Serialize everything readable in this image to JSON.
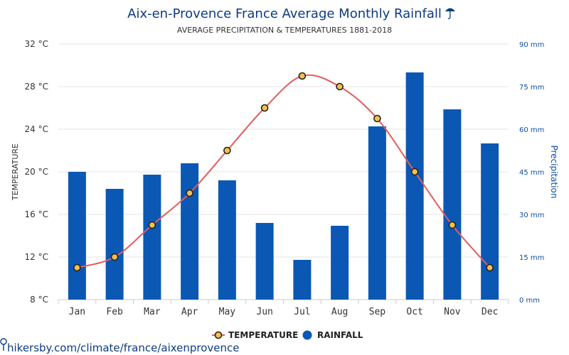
{
  "chart_data": {
    "type": "bar+line",
    "title": "Aix-en-Provence France Average Monthly Rainfall",
    "title_icon": "umbrella-rain-icon",
    "subtitle": "AVERAGE PRECIPITATION & TEMPERATURES 1881-2018",
    "categories": [
      "Jan",
      "Feb",
      "Mar",
      "Apr",
      "May",
      "Jun",
      "Jul",
      "Aug",
      "Sep",
      "Oct",
      "Nov",
      "Dec"
    ],
    "series": [
      {
        "name": "TEMPERATURE",
        "kind": "line",
        "axis": "left",
        "unit": "°C",
        "color": "#e35d5d",
        "marker_fill": "#f5c04a",
        "values": [
          11,
          12,
          15,
          18,
          22,
          26,
          29,
          28,
          25,
          20,
          15,
          11
        ]
      },
      {
        "name": "RAINFALL",
        "kind": "bar",
        "axis": "right",
        "unit": "mm",
        "color": "#0a58b4",
        "values": [
          45,
          39,
          44,
          48,
          42,
          27,
          14,
          26,
          61,
          80,
          67,
          55
        ]
      }
    ],
    "y_left": {
      "label": "TEMPERATURE",
      "range": [
        8,
        32
      ],
      "ticks": [
        "8 °C",
        "12 °C",
        "16 °C",
        "20 °C",
        "24 °C",
        "28 °C",
        "32 °C"
      ]
    },
    "y_right": {
      "label": "Precipitation",
      "range": [
        0,
        90
      ],
      "ticks": [
        "0 mm",
        "15 mm",
        "30 mm",
        "45 mm",
        "60 mm",
        "75 mm",
        "90 mm"
      ]
    },
    "grid": true,
    "legend_position": "bottom",
    "legend": [
      {
        "label": "TEMPERATURE",
        "icon": "temperature-legend-marker"
      },
      {
        "label": "RAINFALL",
        "icon": "rainfall-legend-marker"
      }
    ]
  },
  "footer": {
    "source_link": "hikersby.com/climate/france/aixenprovence",
    "icon": "map-pin-icon"
  },
  "colors": {
    "title": "#0d3c82",
    "axis_text": "#333333",
    "right_axis_text": "#0d4fa0",
    "grid": "#e6e6e6"
  }
}
